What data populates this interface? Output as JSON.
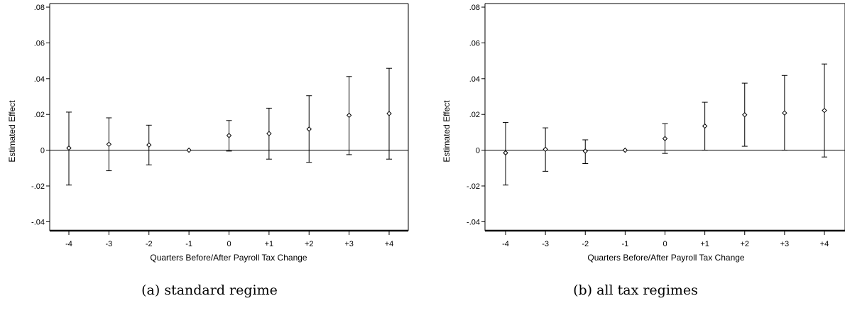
{
  "chart_data": [
    {
      "type": "scatter",
      "caption": "(a) standard regime",
      "xlabel": "Quarters Before/After Payroll Tax Change",
      "ylabel": "Estimated Effect",
      "categories": [
        "-4",
        "-3",
        "-2",
        "-1",
        "0",
        "+1",
        "+2",
        "+3",
        "+4"
      ],
      "ylim": [
        -0.045,
        0.082
      ],
      "yticks": [
        -0.04,
        -0.02,
        0,
        0.02,
        0.04,
        0.06,
        0.08
      ],
      "ytick_labels": [
        "-.04",
        "-.02",
        "0",
        ".02",
        ".04",
        ".06",
        ".08"
      ],
      "grid": false,
      "zero_line": true,
      "estimates": [
        0.0012,
        0.0033,
        0.0029,
        0.0,
        0.0082,
        0.0093,
        0.0118,
        0.0195,
        0.0205
      ],
      "ci_lower": [
        -0.0195,
        -0.0115,
        -0.0082,
        0.0,
        -0.0005,
        -0.005,
        -0.0068,
        -0.0025,
        -0.005
      ],
      "ci_upper": [
        0.0213,
        0.0181,
        0.014,
        0.0,
        0.0166,
        0.0235,
        0.0305,
        0.0412,
        0.0458
      ]
    },
    {
      "type": "scatter",
      "caption": "(b) all tax regimes",
      "xlabel": "Quarters Before/After Payroll Tax Change",
      "ylabel": "Estimated Effect",
      "categories": [
        "-4",
        "-3",
        "-2",
        "-1",
        "0",
        "+1",
        "+2",
        "+3",
        "+4"
      ],
      "ylim": [
        -0.045,
        0.082
      ],
      "yticks": [
        -0.04,
        -0.02,
        0,
        0.02,
        0.04,
        0.06,
        0.08
      ],
      "ytick_labels": [
        "-.04",
        "-.02",
        "0",
        ".02",
        ".04",
        ".06",
        ".08"
      ],
      "grid": false,
      "zero_line": true,
      "estimates": [
        -0.0015,
        0.0005,
        -0.0005,
        0.0,
        0.0065,
        0.0135,
        0.0198,
        0.0208,
        0.0222
      ],
      "ci_lower": [
        -0.0195,
        -0.0118,
        -0.0075,
        0.0,
        -0.0018,
        0.0,
        0.0022,
        0.0,
        -0.0038
      ],
      "ci_upper": [
        0.0155,
        0.0125,
        0.0058,
        0.0,
        0.0148,
        0.0268,
        0.0375,
        0.0418,
        0.0482
      ]
    }
  ]
}
